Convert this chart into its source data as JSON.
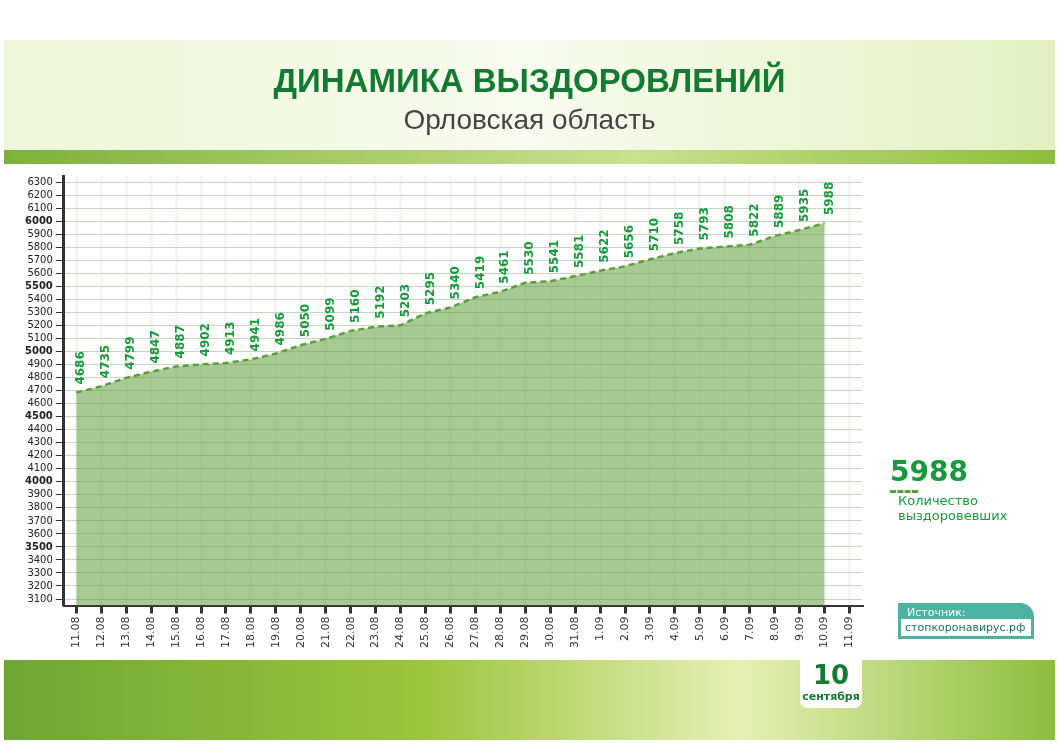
{
  "chart_data": {
    "type": "area",
    "title": "ДИНАМИКА ВЫЗДОРОВЛЕНИЙ",
    "subtitle": "Орловская область",
    "categories": [
      "11.08",
      "12.08",
      "13.08",
      "14.08",
      "15.08",
      "16.08",
      "17.08",
      "18.08",
      "19.08",
      "20.08",
      "21.08",
      "22.08",
      "23.08",
      "24.08",
      "25.08",
      "26.08",
      "27.08",
      "28.08",
      "29.08",
      "30.08",
      "31.08",
      "1.09",
      "2.09",
      "3.09",
      "4.09",
      "5.09",
      "6.09",
      "7.09",
      "8.09",
      "9.09",
      "10.09",
      "11.09"
    ],
    "series": [
      {
        "name": "Количество выздоровевших",
        "color": "#5e9e3c",
        "values": [
          4686,
          4735,
          4799,
          4847,
          4887,
          4902,
          4913,
          4941,
          4986,
          5050,
          5099,
          5160,
          5192,
          5203,
          5295,
          5340,
          5419,
          5461,
          5530,
          5541,
          5581,
          5622,
          5656,
          5710,
          5758,
          5793,
          5808,
          5822,
          5889,
          5935,
          5988,
          null
        ]
      }
    ],
    "ylim": [
      3050,
      6350
    ],
    "yticks": [
      3100,
      3200,
      3300,
      3400,
      3500,
      3600,
      3700,
      3800,
      3900,
      4000,
      4100,
      4200,
      4300,
      4400,
      4500,
      4600,
      4700,
      4800,
      4900,
      5000,
      5100,
      5200,
      5300,
      5400,
      5500,
      5600,
      5700,
      5800,
      5900,
      6000,
      6100,
      6200,
      6300
    ],
    "grid": true,
    "data_labels": true,
    "line_style": "dashed",
    "marker": "none",
    "legend": "right",
    "annotations": [
      "5988",
      "10 сентября",
      "Источник:",
      "стопкоронавирус.рф"
    ]
  }
}
